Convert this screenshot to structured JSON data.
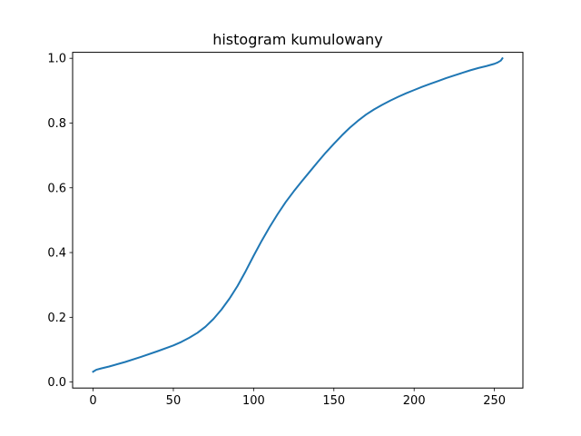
{
  "chart_data": {
    "type": "line",
    "title": "histogram kumulowany",
    "xlabel": "",
    "ylabel": "",
    "xlim": [
      -12.75,
      267.75
    ],
    "ylim": [
      -0.0185,
      1.0185
    ],
    "xticks": [
      0,
      50,
      100,
      150,
      200,
      250
    ],
    "xtick_labels": [
      "0",
      "50",
      "100",
      "150",
      "200",
      "250"
    ],
    "yticks": [
      0.0,
      0.2,
      0.4,
      0.6,
      0.8,
      1.0
    ],
    "ytick_labels": [
      "0.0",
      "0.2",
      "0.4",
      "0.6",
      "0.8",
      "1.0"
    ],
    "grid": false,
    "legend": "none",
    "series": [
      {
        "color": "#1f77b4",
        "x": [
          0,
          2,
          5,
          10,
          20,
          30,
          40,
          50,
          55,
          60,
          65,
          70,
          75,
          80,
          85,
          90,
          95,
          100,
          105,
          110,
          115,
          120,
          125,
          130,
          135,
          140,
          145,
          150,
          155,
          160,
          165,
          170,
          175,
          180,
          185,
          190,
          195,
          200,
          205,
          210,
          215,
          220,
          225,
          230,
          235,
          240,
          245,
          250,
          252,
          254,
          255
        ],
        "y": [
          0.032,
          0.038,
          0.042,
          0.048,
          0.062,
          0.078,
          0.095,
          0.113,
          0.124,
          0.137,
          0.152,
          0.171,
          0.195,
          0.224,
          0.258,
          0.297,
          0.342,
          0.39,
          0.436,
          0.479,
          0.519,
          0.556,
          0.589,
          0.62,
          0.65,
          0.68,
          0.709,
          0.736,
          0.762,
          0.786,
          0.807,
          0.826,
          0.842,
          0.856,
          0.869,
          0.881,
          0.892,
          0.902,
          0.912,
          0.921,
          0.93,
          0.939,
          0.947,
          0.955,
          0.963,
          0.97,
          0.976,
          0.983,
          0.987,
          0.993,
          1.0
        ]
      }
    ]
  }
}
